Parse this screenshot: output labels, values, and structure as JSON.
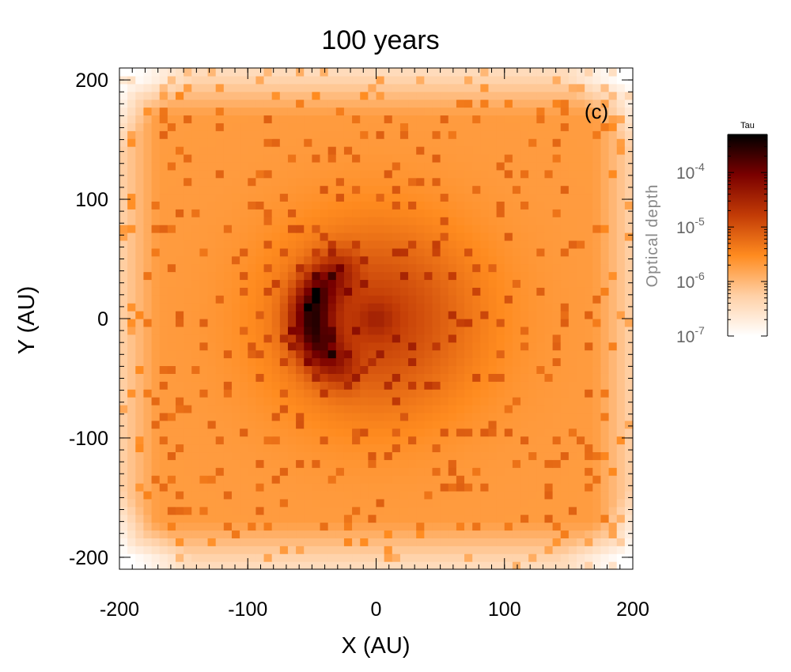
{
  "chart_data": {
    "type": "heatmap",
    "title": "100 years",
    "panel_label": "(c)",
    "xlabel": "X (AU)",
    "ylabel": "Y (AU)",
    "xlim": [
      -200,
      200
    ],
    "ylim": [
      -210,
      210
    ],
    "x_ticks": [
      -200,
      -100,
      0,
      100,
      200
    ],
    "x_tick_labels": [
      "-200",
      "-100",
      "0",
      "100",
      "200"
    ],
    "y_ticks": [
      -200,
      -100,
      0,
      100,
      200
    ],
    "y_tick_labels": [
      "-200",
      "-100",
      "0",
      "100",
      "200"
    ],
    "grid_cells": 64,
    "colorbar": {
      "title": "Tau",
      "label": "Optical depth",
      "scale": "log",
      "range": [
        1e-07,
        0.0005
      ],
      "tick_values": [
        1e-07,
        1e-06,
        1e-05,
        0.0001
      ],
      "tick_base": "10",
      "tick_exponents": [
        "-7",
        "-6",
        "-5",
        "-4"
      ],
      "colors": [
        "#ffffff",
        "#ffd0a6",
        "#ff8b1f",
        "#c23b06",
        "#7a0000",
        "#000000"
      ]
    },
    "features": {
      "background_level": 2e-06,
      "corner_level": 3e-07,
      "central_source": {
        "x": 0,
        "y": 0,
        "level": 3e-05
      },
      "dense_arc": {
        "center_x": 0,
        "center_y": 0,
        "radius": 50,
        "angles_deg": [
          100,
          260
        ],
        "level": 0.0002
      }
    }
  }
}
